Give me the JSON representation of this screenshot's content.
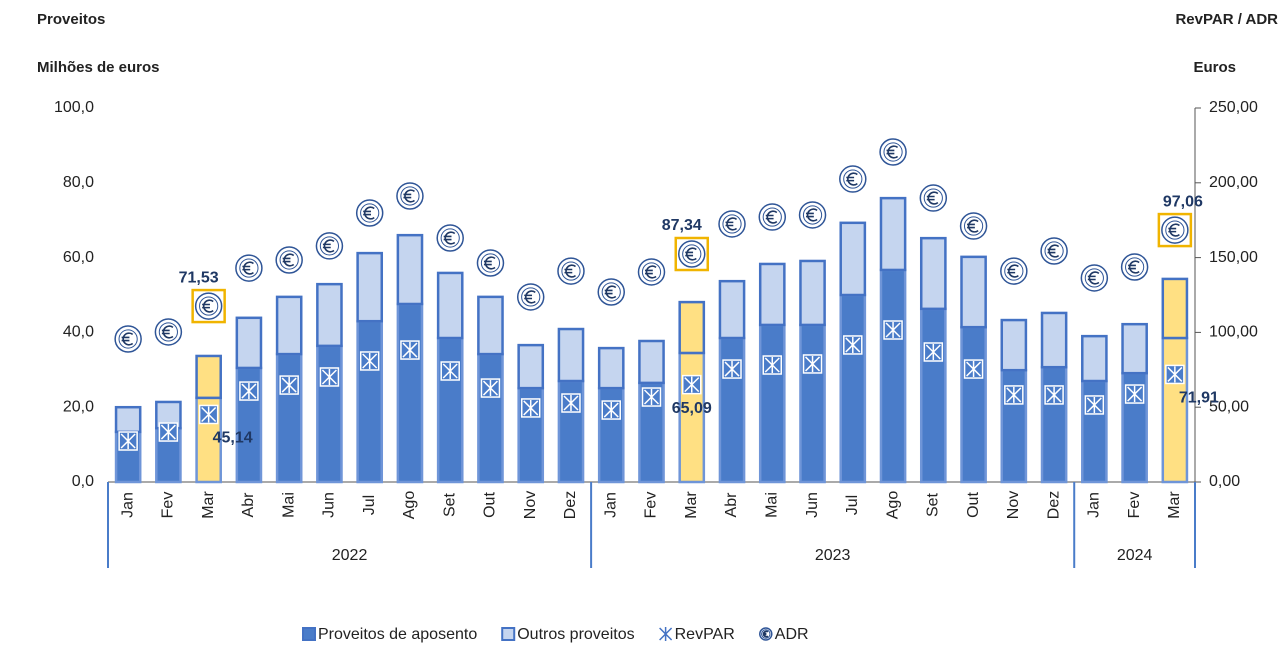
{
  "chart_data": {
    "type": "bar",
    "title_left": "Proveitos",
    "ylabel": "Milhões de euros",
    "title_right": "RevPAR / ADR",
    "y2label": "Euros",
    "categories": [
      "Jan",
      "Fev",
      "Mar",
      "Abr",
      "Mai",
      "Jun",
      "Jul",
      "Ago",
      "Set",
      "Out",
      "Nov",
      "Dez",
      "Jan",
      "Fev",
      "Mar",
      "Abr",
      "Mai",
      "Jun",
      "Jul",
      "Ago",
      "Set",
      "Out",
      "Nov",
      "Dez",
      "Jan",
      "Fev",
      "Mar"
    ],
    "year_groups": [
      {
        "label": "2022",
        "months": 12
      },
      {
        "label": "2023",
        "months": 12
      },
      {
        "label": "2024",
        "months": 3
      }
    ],
    "series": [
      {
        "name": "Proveitos de aposento",
        "kind": "bar",
        "color": "#4a7cc9",
        "values": [
          13.4,
          14.4,
          22.5,
          30.5,
          34.2,
          36.4,
          43.0,
          47.6,
          38.5,
          34.2,
          25.1,
          27.0,
          25.1,
          26.5,
          34.5,
          38.5,
          42.0,
          42.0,
          50.0,
          56.7,
          46.3,
          41.4,
          29.9,
          30.7,
          27.0,
          29.1,
          38.5
        ]
      },
      {
        "name": "Outros proveitos",
        "kind": "bar",
        "color": "#c5d5ef",
        "values": [
          6.6,
          7.0,
          11.2,
          13.4,
          15.3,
          16.5,
          18.2,
          18.4,
          17.4,
          15.3,
          11.5,
          13.9,
          10.7,
          11.2,
          13.6,
          15.2,
          16.3,
          17.1,
          19.3,
          19.2,
          18.9,
          18.8,
          13.4,
          14.5,
          12.0,
          13.1,
          15.8
        ]
      },
      {
        "name": "RevPAR",
        "kind": "revpar",
        "axis": "y2",
        "color": "#4472c4",
        "values": [
          27.4,
          33.4,
          45.14,
          60.8,
          64.8,
          70.2,
          80.9,
          88.2,
          74.2,
          62.8,
          49.5,
          52.8,
          48.1,
          56.8,
          65.09,
          75.5,
          78.2,
          78.9,
          91.6,
          101.6,
          86.9,
          75.5,
          58.2,
          58.2,
          51.5,
          58.8,
          71.91
        ],
        "value_labels": [
          null,
          null,
          "45,14",
          null,
          null,
          null,
          null,
          null,
          null,
          null,
          null,
          null,
          null,
          null,
          "65,09",
          null,
          null,
          null,
          null,
          null,
          null,
          null,
          null,
          null,
          null,
          null,
          "71,91"
        ]
      },
      {
        "name": "ADR",
        "kind": "adr",
        "axis": "y2",
        "color": "#2f5597",
        "values": [
          95.6,
          100.3,
          117.6,
          143.0,
          148.4,
          157.8,
          179.8,
          191.2,
          163.1,
          146.4,
          123.7,
          141.0,
          127.0,
          140.4,
          152.4,
          172.5,
          177.1,
          178.5,
          202.5,
          220.6,
          189.8,
          171.1,
          141.0,
          154.4,
          136.4,
          143.7,
          168.4
        ]
      }
    ],
    "highlight": [
      2,
      14,
      26
    ],
    "highlight_color": "#ffe083",
    "highlight_notes": [
      "71,53",
      "87,34",
      "97,06"
    ],
    "ylim": [
      0,
      100
    ],
    "yticks": [
      {
        "value": 0,
        "label": "0,0"
      },
      {
        "value": 20,
        "label": "20,0"
      },
      {
        "value": 40,
        "label": "40,0"
      },
      {
        "value": 60,
        "label": "60,0"
      },
      {
        "value": 80,
        "label": "80,0"
      },
      {
        "value": 100,
        "label": "100,0"
      }
    ],
    "y2lim": [
      0,
      250
    ],
    "y2ticks": [
      {
        "value": 0,
        "label": "0,00"
      },
      {
        "value": 50,
        "label": "50,00"
      },
      {
        "value": 100,
        "label": "100,00"
      },
      {
        "value": 150,
        "label": "150,00"
      },
      {
        "value": 200,
        "label": "200,00"
      },
      {
        "value": 250,
        "label": "250,00"
      }
    ]
  }
}
